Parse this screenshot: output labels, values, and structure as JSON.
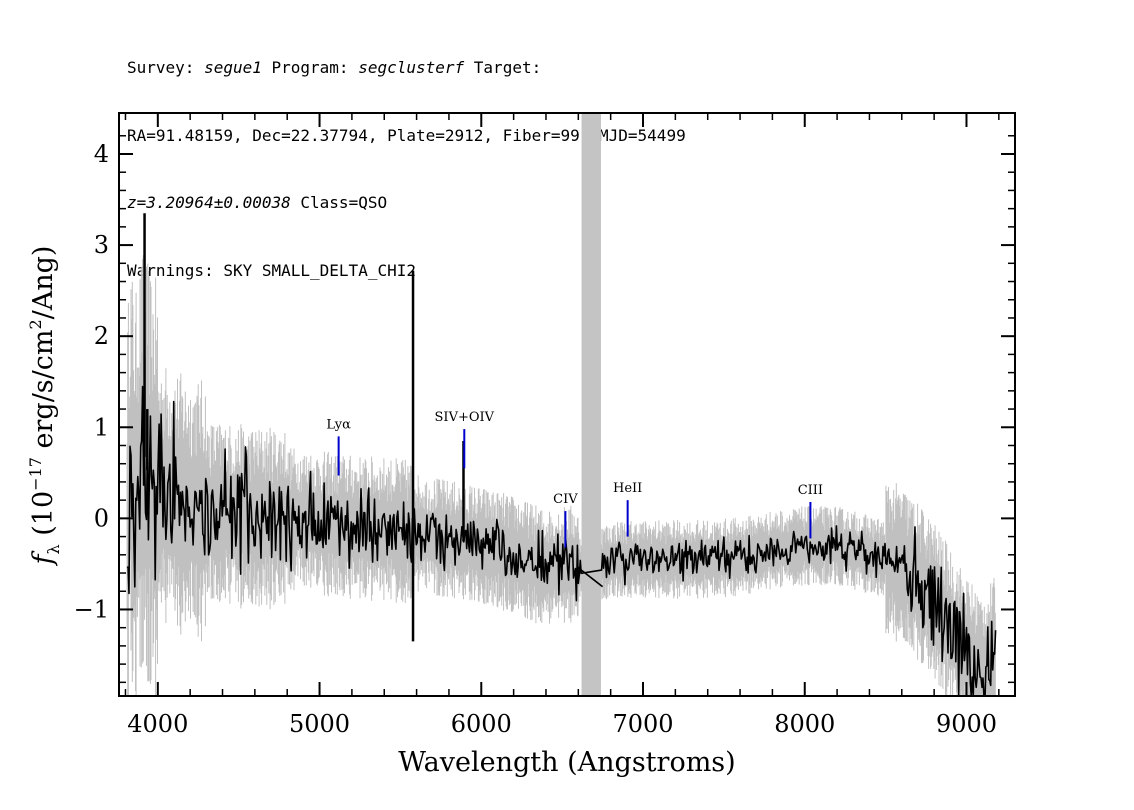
{
  "header": {
    "line1": {
      "survey_label": "Survey: ",
      "survey": "segue1",
      "program_label": " Program: ",
      "program": "segclusterf",
      "target_label": " Target:"
    },
    "line2": "RA=91.48159, Dec=22.37794, Plate=2912, Fiber=99, MJD=54499",
    "line3": {
      "redshift": "z=3.20964±0.00038",
      "class": " Class=QSO"
    },
    "line4": "Warnings: SKY SMALL_DELTA_CHI2"
  },
  "chart_data": {
    "type": "line",
    "xlabel": "Wavelength (Angstroms)",
    "ylabel": "f_λ (10^-17 erg/s/cm^2/Ang)",
    "xlim": [
      3760,
      9300
    ],
    "ylim": [
      -1.95,
      4.45
    ],
    "xticks": [
      4000,
      5000,
      6000,
      7000,
      8000,
      9000
    ],
    "yticks": [
      -1,
      0,
      1,
      2,
      3,
      4
    ],
    "masked_band": [
      6620,
      6740
    ],
    "colors": {
      "flux": "#000000",
      "error": "#c0c0c0",
      "lines": "#0000cc",
      "mask": "#c4c4c4"
    },
    "series": [
      {
        "x": [
          3810,
          3830,
          3860,
          3890,
          3915,
          3950,
          4000,
          4100,
          4200,
          4400,
          4600,
          4800,
          5000,
          5200,
          5400,
          5570,
          5700,
          5880,
          6000,
          6200,
          6400,
          6550,
          6620,
          6750,
          6850,
          7000,
          7200,
          7400,
          7600,
          7800,
          8000,
          8200,
          8400,
          8600,
          8800,
          8900,
          9000,
          9100,
          9180
        ],
        "y": [
          -0.2,
          0.6,
          0.1,
          0.5,
          0.7,
          0.4,
          0.3,
          0.2,
          0.1,
          0.05,
          0.0,
          0.0,
          -0.05,
          -0.1,
          -0.12,
          -0.15,
          -0.2,
          -0.25,
          -0.3,
          -0.4,
          -0.55,
          -0.5,
          -0.55,
          -0.5,
          -0.45,
          -0.45,
          -0.45,
          -0.45,
          -0.42,
          -0.35,
          -0.3,
          -0.3,
          -0.4,
          -0.5,
          -0.9,
          -1.2,
          -1.5,
          -1.7,
          -1.5
        ]
      }
    ],
    "spikes": [
      {
        "x": 3918,
        "y": 3.35
      },
      {
        "x": 3935,
        "y": 1.2
      },
      {
        "x": 5578,
        "y": 2.72
      },
      {
        "x": 5578,
        "y": -1.35
      },
      {
        "x": 5890,
        "y": 0.85
      }
    ],
    "emission_lines": [
      {
        "label": "Lyα",
        "x": 5118,
        "y_top": 0.9,
        "y_bottom": 0.47
      },
      {
        "label": "SIV+OIV",
        "x": 5895,
        "y_top": 0.98,
        "y_bottom": 0.55
      },
      {
        "label": "CIV",
        "x": 6520,
        "y_top": 0.08,
        "y_bottom": -0.32
      },
      {
        "label": "HeII",
        "x": 6905,
        "y_top": 0.2,
        "y_bottom": -0.2
      },
      {
        "label": "CIII",
        "x": 8035,
        "y_top": 0.18,
        "y_bottom": -0.22
      }
    ]
  }
}
